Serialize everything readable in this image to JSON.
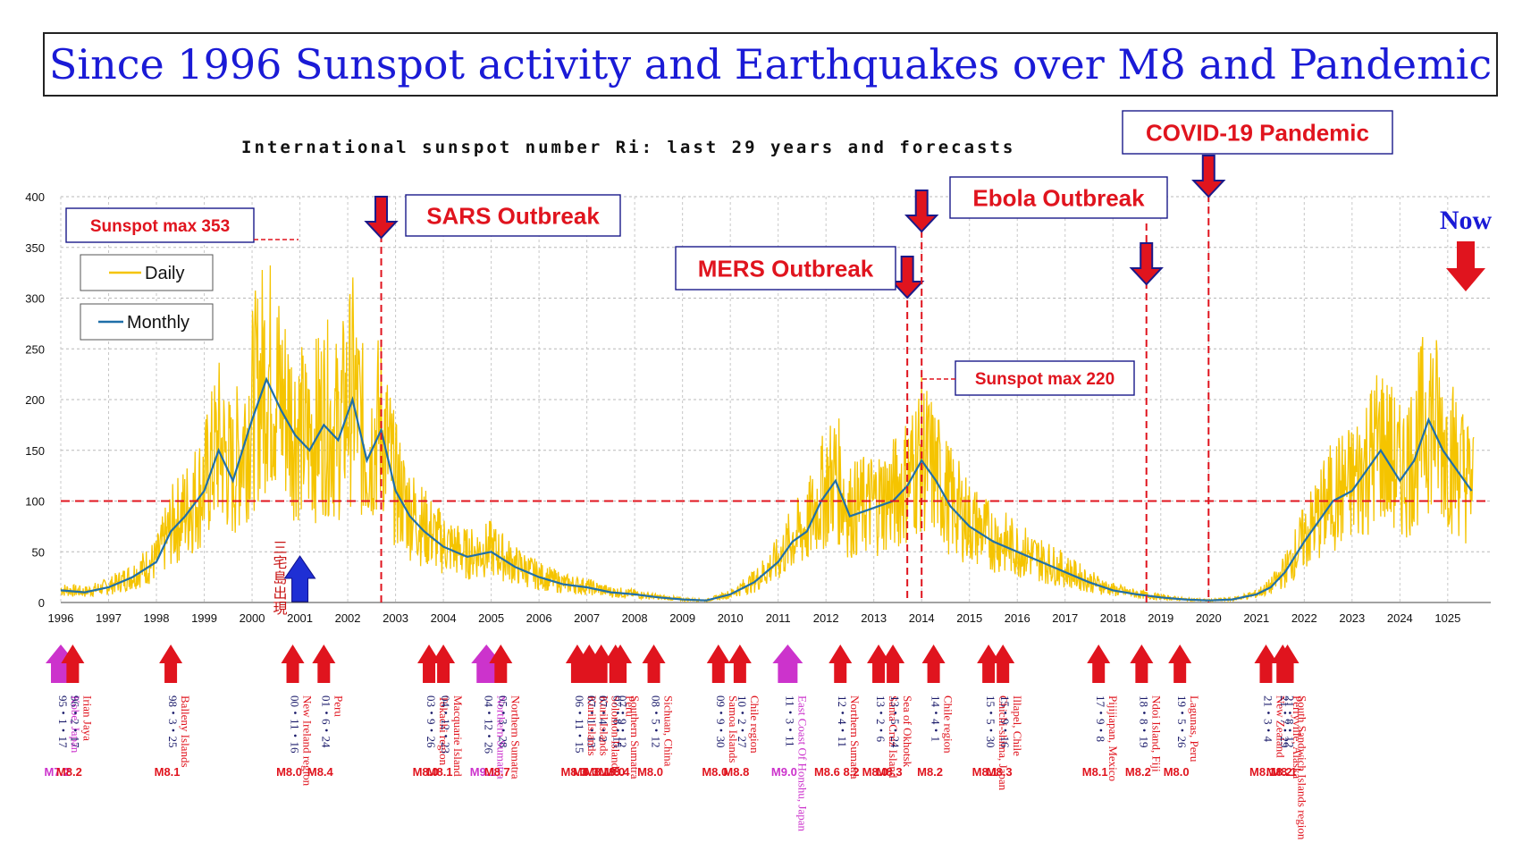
{
  "title": "Since 1996 Sunspot activity and Earthquakes over M8 and Pandemic",
  "chart_data": {
    "type": "line",
    "title": "International sunspot number Ri: last 29 years and forecasts",
    "xlabel": "",
    "ylabel": "",
    "xlim": [
      1996,
      2025.9
    ],
    "ylim": [
      0,
      400
    ],
    "yticks": [
      0,
      50,
      100,
      150,
      200,
      250,
      300,
      350,
      400
    ],
    "xtick_labels": [
      "1996",
      "1997",
      "1998",
      "1999",
      "2000",
      "2001",
      "2002",
      "2003",
      "2004",
      "2005",
      "2006",
      "2007",
      "2008",
      "2009",
      "2010",
      "2011",
      "2012",
      "2013",
      "2014",
      "2015",
      "2016",
      "2017",
      "2018",
      "2019",
      "2020",
      "2021",
      "2022",
      "2023",
      "2024",
      "1025"
    ],
    "grid": true,
    "legend_position": "top-left",
    "reference_line": {
      "y": 100,
      "color": "#e0141e"
    },
    "series": [
      {
        "name": "Monthly",
        "color": "#1f6fa8",
        "x": [
          1996.0,
          1996.5,
          1997.0,
          1997.5,
          1998.0,
          1998.3,
          1998.6,
          1999.0,
          1999.3,
          1999.6,
          2000.0,
          2000.3,
          2000.6,
          2000.9,
          2001.2,
          2001.5,
          2001.8,
          2002.1,
          2002.4,
          2002.7,
          2003.0,
          2003.3,
          2003.6,
          2004.0,
          2004.5,
          2005.0,
          2005.5,
          2006.0,
          2006.5,
          2007.0,
          2007.5,
          2008.0,
          2008.5,
          2009.0,
          2009.5,
          2010.0,
          2010.5,
          2011.0,
          2011.3,
          2011.6,
          2011.9,
          2012.2,
          2012.5,
          2012.8,
          2013.1,
          2013.4,
          2013.7,
          2014.0,
          2014.3,
          2014.6,
          2015.0,
          2015.5,
          2016.0,
          2016.5,
          2017.0,
          2017.5,
          2018.0,
          2018.5,
          2019.0,
          2019.5,
          2020.0,
          2020.5,
          2021.0,
          2021.3,
          2021.6,
          2022.0,
          2022.3,
          2022.6,
          2023.0,
          2023.3,
          2023.6,
          2024.0,
          2024.3,
          2024.6,
          2024.9,
          2025.2,
          2025.5
        ],
        "y": [
          12,
          10,
          15,
          25,
          40,
          70,
          85,
          110,
          150,
          120,
          180,
          220,
          190,
          165,
          150,
          175,
          160,
          200,
          140,
          170,
          110,
          85,
          70,
          55,
          45,
          50,
          35,
          25,
          18,
          15,
          10,
          8,
          5,
          3,
          2,
          8,
          20,
          40,
          60,
          70,
          100,
          120,
          85,
          90,
          95,
          100,
          115,
          140,
          120,
          95,
          75,
          60,
          50,
          40,
          30,
          20,
          12,
          8,
          5,
          3,
          2,
          3,
          8,
          15,
          30,
          60,
          80,
          100,
          110,
          130,
          150,
          120,
          140,
          180,
          150,
          130,
          110
        ]
      },
      {
        "name": "Daily",
        "color": "#f5c400",
        "note": "daily series spans the same range with higher variance; max 353 around 2000-2001"
      }
    ]
  },
  "legend": {
    "daily": "Daily",
    "monthly": "Monthly"
  },
  "annotations": {
    "sunspot_max_353": "Sunspot max 353",
    "sunspot_max_220": "Sunspot max 220",
    "sars": "SARS Outbreak",
    "mers": "MERS Outbreak",
    "ebola": "Ebola Outbreak",
    "covid": "COVID-19 Pandemic",
    "now": "Now",
    "kanji": "三宅島出現"
  },
  "events": {
    "sars_year": 2002.7,
    "mers_year": 2013.7,
    "ebola_year": 2014.0,
    "covid_year": 2020.0,
    "extra_line_year": 2018.7,
    "kanji_year": 2001.0
  },
  "colors": {
    "daily": "#f5c400",
    "monthly": "#1f6fa8",
    "annotation_red": "#e0141e",
    "title_blue": "#1a1ad6",
    "magenta": "#cc33cc",
    "box_border": "#1a1a8a"
  },
  "quakes": [
    {
      "year": 1996.0,
      "date": "95・1・17",
      "place": "Kobe, Japan",
      "mag": "M7.2",
      "color": "magenta"
    },
    {
      "year": 1996.25,
      "date": "96・2・17",
      "place": "Irian Jaya",
      "mag": "M8.2",
      "color": "red"
    },
    {
      "year": 1998.3,
      "date": "98・3・25",
      "place": "Balleny Islands",
      "mag": "M8.1",
      "color": "red"
    },
    {
      "year": 2000.85,
      "date": "00・11・16",
      "place": "New Ireland region",
      "mag": "M8.0",
      "color": "red"
    },
    {
      "year": 2001.5,
      "date": "01・6・24",
      "place": "Peru",
      "mag": "M8.4",
      "color": "red"
    },
    {
      "year": 2003.7,
      "date": "03・9・26",
      "place": "Tokachi region",
      "mag": "M8.0",
      "color": "red"
    },
    {
      "year": 2004.0,
      "date": "04・12・23",
      "place": "Macquarie Island",
      "mag": "M8.1",
      "color": "red"
    },
    {
      "year": 2004.9,
      "date": "04・12・26",
      "place": "Northern Sumatra",
      "mag": "M9.1",
      "color": "magenta"
    },
    {
      "year": 2005.2,
      "date": "05・3・28",
      "place": "Northern Sumatra",
      "mag": "M8.7",
      "color": "red"
    },
    {
      "year": 2006.8,
      "date": "06・11・15",
      "place": "Kuril Islands",
      "mag": "M8.3",
      "color": "red"
    },
    {
      "year": 2007.05,
      "date": "07・1・13",
      "place": "Kuril Islands",
      "mag": "M8.3",
      "color": "red"
    },
    {
      "year": 2007.3,
      "date": "07・4・2",
      "place": "Solomon Islands",
      "mag": "M8.1",
      "color": "red"
    },
    {
      "year": 2007.6,
      "date": "07・8・15",
      "place": "Peru",
      "mag": "M8.0",
      "color": "red"
    },
    {
      "year": 2007.7,
      "date": "07・9・12",
      "place": "Southern Sumatra",
      "mag": "M8.4",
      "color": "red"
    },
    {
      "year": 2008.4,
      "date": "08・5・12",
      "place": "Sichuan, China",
      "mag": "M8.0",
      "color": "red"
    },
    {
      "year": 2009.75,
      "date": "09・9・30",
      "place": "Samoa Islands",
      "mag": "M8.0",
      "color": "red"
    },
    {
      "year": 2010.2,
      "date": "10・2・27",
      "place": "Chile region",
      "mag": "M8.8",
      "color": "red"
    },
    {
      "year": 2011.2,
      "date": "11・3・11",
      "place": "East Coast Of Honshu, Japan",
      "mag": "M9.0",
      "color": "magenta"
    },
    {
      "year": 2012.3,
      "date": "12・4・11",
      "place": "Northern Sumatra",
      "mag": "M8.6 8.2",
      "color": "red"
    },
    {
      "year": 2013.1,
      "date": "13・2・6",
      "place": "Santa Cruz Island",
      "mag": "M8.0",
      "color": "red"
    },
    {
      "year": 2013.4,
      "date": "13・5・24",
      "place": "Sea of Okhotsk",
      "mag": "M8.3",
      "color": "red"
    },
    {
      "year": 2014.25,
      "date": "14・4・1",
      "place": "Chile region",
      "mag": "M8.2",
      "color": "red"
    },
    {
      "year": 2015.4,
      "date": "15・5・30",
      "place": "Chichi-shima, Japan",
      "mag": "M8.1",
      "color": "red"
    },
    {
      "year": 2015.7,
      "date": "15・9・16",
      "place": "Illapel, Chile",
      "mag": "M8.3",
      "color": "red"
    },
    {
      "year": 2017.7,
      "date": "17・9・8",
      "place": "Pijijiapan, Mexico",
      "mag": "M8.1",
      "color": "red"
    },
    {
      "year": 2018.6,
      "date": "18・8・19",
      "place": "Ndoi Island, Fiji",
      "mag": "M8.2",
      "color": "red"
    },
    {
      "year": 2019.4,
      "date": "19・5・26",
      "place": "Lagunas, Peru",
      "mag": "M8.0",
      "color": "red"
    },
    {
      "year": 2021.2,
      "date": "21・3・4",
      "place": "New Zealand",
      "mag": "M8.1",
      "color": "red"
    },
    {
      "year": 2021.55,
      "date": "21・7・29",
      "place": "Perryville, Alaska",
      "mag": "M8.2",
      "color": "red"
    },
    {
      "year": 2021.65,
      "date": "21・8・12",
      "place": "South Sandwich Islands region",
      "mag": "M8.1",
      "color": "red"
    }
  ]
}
